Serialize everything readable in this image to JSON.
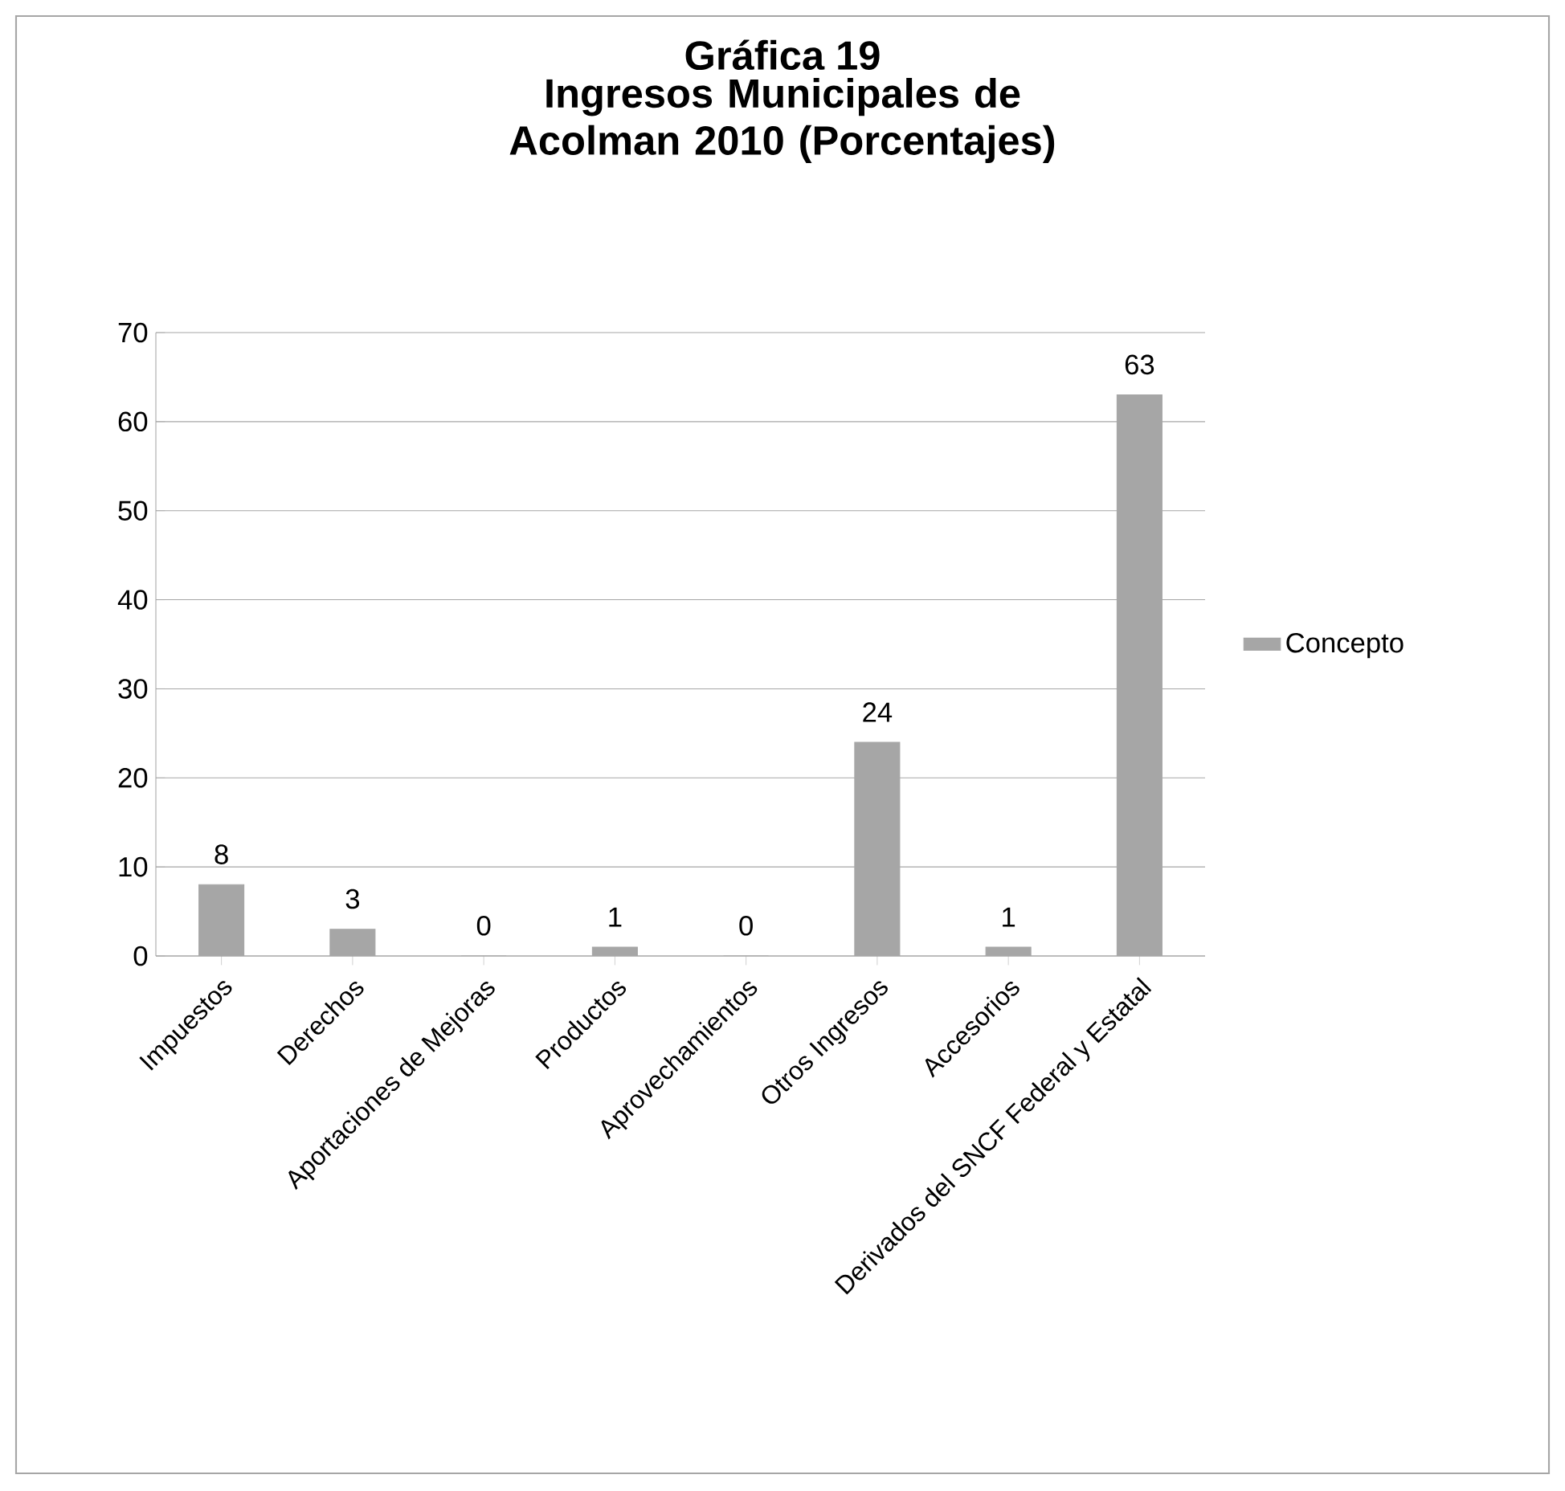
{
  "chart_data": {
    "type": "bar",
    "title": "Gráfica 19",
    "subtitle": "Ingresos Municipales de Acolman 2010 (Porcentajes)",
    "categories": [
      "Impuestos",
      "Derechos",
      "Aportaciones de Mejoras",
      "Productos",
      "Aprovechamientos",
      "Otros Ingresos",
      "Accesorios",
      "Derivados del SNCF Federal y Estatal"
    ],
    "series": [
      {
        "name": "Concepto",
        "color": "#a6a6a6",
        "values": [
          8,
          3,
          0,
          1,
          0,
          24,
          1,
          63
        ]
      }
    ],
    "ylim": [
      0,
      70
    ],
    "yticks": [
      0,
      10,
      20,
      30,
      40,
      50,
      60,
      70
    ],
    "grid": "y",
    "legend": "right",
    "data_labels": true
  }
}
